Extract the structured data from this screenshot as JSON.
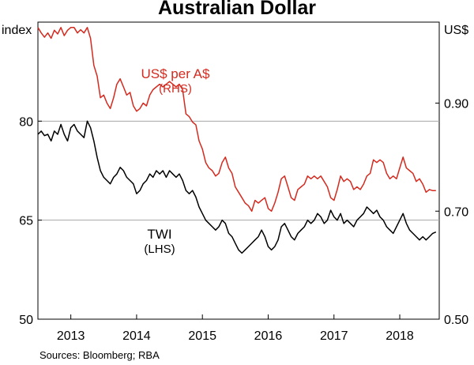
{
  "chart_data": {
    "type": "line",
    "title": "Australian Dollar",
    "source": "Sources: Bloomberg; RBA",
    "left_axis": {
      "unit": "index",
      "ylim": [
        50,
        95
      ],
      "ticks": [
        50,
        65,
        80
      ],
      "tick_labels": [
        "50",
        "65",
        "80"
      ]
    },
    "right_axis": {
      "unit": "US$",
      "ylim": [
        0.5,
        1.05
      ],
      "ticks": [
        0.5,
        0.7,
        0.9
      ],
      "tick_labels": [
        "0.50",
        "0.70",
        "0.90"
      ]
    },
    "x_axis": {
      "xlim": [
        2012.5,
        2018.6
      ],
      "tick_labels": [
        "2013",
        "2014",
        "2015",
        "2016",
        "2017",
        "2018"
      ],
      "label_positions": [
        2013,
        2014,
        2015,
        2016,
        2017,
        2018
      ]
    },
    "grid": "horizontal",
    "series": [
      {
        "name": "US$ per A$",
        "axis_note": "(RHS)",
        "axis": "right",
        "color": "#d42a1f",
        "points": [
          [
            2012.5,
            1.04
          ],
          [
            2012.55,
            1.03
          ],
          [
            2012.6,
            1.022
          ],
          [
            2012.65,
            1.03
          ],
          [
            2012.7,
            1.02
          ],
          [
            2012.75,
            1.035
          ],
          [
            2012.8,
            1.028
          ],
          [
            2012.85,
            1.04
          ],
          [
            2012.9,
            1.025
          ],
          [
            2012.95,
            1.035
          ],
          [
            2013.0,
            1.04
          ],
          [
            2013.05,
            1.04
          ],
          [
            2013.1,
            1.03
          ],
          [
            2013.15,
            1.036
          ],
          [
            2013.2,
            1.03
          ],
          [
            2013.25,
            1.04
          ],
          [
            2013.3,
            1.02
          ],
          [
            2013.35,
            0.97
          ],
          [
            2013.4,
            0.95
          ],
          [
            2013.45,
            0.91
          ],
          [
            2013.5,
            0.915
          ],
          [
            2013.55,
            0.9
          ],
          [
            2013.6,
            0.89
          ],
          [
            2013.65,
            0.91
          ],
          [
            2013.7,
            0.935
          ],
          [
            2013.75,
            0.945
          ],
          [
            2013.8,
            0.93
          ],
          [
            2013.85,
            0.915
          ],
          [
            2013.9,
            0.92
          ],
          [
            2013.95,
            0.895
          ],
          [
            2014.0,
            0.885
          ],
          [
            2014.05,
            0.89
          ],
          [
            2014.1,
            0.9
          ],
          [
            2014.15,
            0.895
          ],
          [
            2014.2,
            0.915
          ],
          [
            2014.25,
            0.925
          ],
          [
            2014.3,
            0.93
          ],
          [
            2014.35,
            0.935
          ],
          [
            2014.4,
            0.93
          ],
          [
            2014.45,
            0.935
          ],
          [
            2014.5,
            0.94
          ],
          [
            2014.55,
            0.935
          ],
          [
            2014.6,
            0.93
          ],
          [
            2014.65,
            0.935
          ],
          [
            2014.7,
            0.925
          ],
          [
            2014.75,
            0.88
          ],
          [
            2014.8,
            0.875
          ],
          [
            2014.85,
            0.865
          ],
          [
            2014.9,
            0.86
          ],
          [
            2014.95,
            0.83
          ],
          [
            2015.0,
            0.815
          ],
          [
            2015.05,
            0.79
          ],
          [
            2015.1,
            0.78
          ],
          [
            2015.15,
            0.775
          ],
          [
            2015.2,
            0.765
          ],
          [
            2015.25,
            0.77
          ],
          [
            2015.3,
            0.79
          ],
          [
            2015.35,
            0.8
          ],
          [
            2015.4,
            0.78
          ],
          [
            2015.45,
            0.77
          ],
          [
            2015.5,
            0.745
          ],
          [
            2015.55,
            0.735
          ],
          [
            2015.6,
            0.725
          ],
          [
            2015.65,
            0.715
          ],
          [
            2015.7,
            0.71
          ],
          [
            2015.75,
            0.7
          ],
          [
            2015.8,
            0.72
          ],
          [
            2015.85,
            0.715
          ],
          [
            2015.9,
            0.72
          ],
          [
            2015.95,
            0.725
          ],
          [
            2016.0,
            0.705
          ],
          [
            2016.05,
            0.7
          ],
          [
            2016.1,
            0.715
          ],
          [
            2016.15,
            0.735
          ],
          [
            2016.2,
            0.76
          ],
          [
            2016.25,
            0.765
          ],
          [
            2016.3,
            0.745
          ],
          [
            2016.35,
            0.725
          ],
          [
            2016.4,
            0.72
          ],
          [
            2016.45,
            0.74
          ],
          [
            2016.5,
            0.745
          ],
          [
            2016.55,
            0.75
          ],
          [
            2016.6,
            0.765
          ],
          [
            2016.65,
            0.76
          ],
          [
            2016.7,
            0.765
          ],
          [
            2016.75,
            0.76
          ],
          [
            2016.8,
            0.765
          ],
          [
            2016.85,
            0.755
          ],
          [
            2016.9,
            0.745
          ],
          [
            2016.95,
            0.725
          ],
          [
            2017.0,
            0.72
          ],
          [
            2017.05,
            0.74
          ],
          [
            2017.1,
            0.765
          ],
          [
            2017.15,
            0.755
          ],
          [
            2017.2,
            0.76
          ],
          [
            2017.25,
            0.755
          ],
          [
            2017.3,
            0.74
          ],
          [
            2017.35,
            0.745
          ],
          [
            2017.4,
            0.74
          ],
          [
            2017.45,
            0.75
          ],
          [
            2017.5,
            0.765
          ],
          [
            2017.55,
            0.77
          ],
          [
            2017.6,
            0.795
          ],
          [
            2017.65,
            0.79
          ],
          [
            2017.7,
            0.795
          ],
          [
            2017.75,
            0.79
          ],
          [
            2017.8,
            0.77
          ],
          [
            2017.85,
            0.76
          ],
          [
            2017.9,
            0.765
          ],
          [
            2017.95,
            0.76
          ],
          [
            2018.0,
            0.78
          ],
          [
            2018.05,
            0.8
          ],
          [
            2018.1,
            0.78
          ],
          [
            2018.15,
            0.775
          ],
          [
            2018.2,
            0.77
          ],
          [
            2018.25,
            0.755
          ],
          [
            2018.3,
            0.76
          ],
          [
            2018.35,
            0.75
          ],
          [
            2018.4,
            0.735
          ],
          [
            2018.45,
            0.74
          ],
          [
            2018.5,
            0.738
          ],
          [
            2018.55,
            0.738
          ]
        ]
      },
      {
        "name": "TWI",
        "axis_note": "(LHS)",
        "axis": "left",
        "color": "#000000",
        "points": [
          [
            2012.5,
            78.0
          ],
          [
            2012.55,
            78.5
          ],
          [
            2012.6,
            77.8
          ],
          [
            2012.65,
            78.0
          ],
          [
            2012.7,
            77.0
          ],
          [
            2012.75,
            78.5
          ],
          [
            2012.8,
            78.0
          ],
          [
            2012.85,
            79.5
          ],
          [
            2012.9,
            78.0
          ],
          [
            2012.95,
            77.0
          ],
          [
            2013.0,
            79.0
          ],
          [
            2013.05,
            79.5
          ],
          [
            2013.1,
            78.5
          ],
          [
            2013.15,
            78.0
          ],
          [
            2013.2,
            77.5
          ],
          [
            2013.25,
            80.0
          ],
          [
            2013.3,
            79.0
          ],
          [
            2013.35,
            77.0
          ],
          [
            2013.4,
            74.5
          ],
          [
            2013.45,
            72.5
          ],
          [
            2013.5,
            71.5
          ],
          [
            2013.55,
            71.0
          ],
          [
            2013.6,
            70.5
          ],
          [
            2013.65,
            71.5
          ],
          [
            2013.7,
            72.0
          ],
          [
            2013.75,
            73.0
          ],
          [
            2013.8,
            72.5
          ],
          [
            2013.85,
            71.5
          ],
          [
            2013.9,
            71.0
          ],
          [
            2013.95,
            70.5
          ],
          [
            2014.0,
            69.0
          ],
          [
            2014.05,
            69.5
          ],
          [
            2014.1,
            70.5
          ],
          [
            2014.15,
            71.0
          ],
          [
            2014.2,
            72.0
          ],
          [
            2014.25,
            71.5
          ],
          [
            2014.3,
            72.5
          ],
          [
            2014.35,
            72.0
          ],
          [
            2014.4,
            72.5
          ],
          [
            2014.45,
            71.5
          ],
          [
            2014.5,
            72.5
          ],
          [
            2014.55,
            72.0
          ],
          [
            2014.6,
            71.5
          ],
          [
            2014.65,
            72.0
          ],
          [
            2014.7,
            71.0
          ],
          [
            2014.75,
            69.5
          ],
          [
            2014.8,
            69.0
          ],
          [
            2014.85,
            69.5
          ],
          [
            2014.9,
            68.5
          ],
          [
            2014.95,
            67.0
          ],
          [
            2015.0,
            66.0
          ],
          [
            2015.05,
            65.0
          ],
          [
            2015.1,
            64.5
          ],
          [
            2015.15,
            64.0
          ],
          [
            2015.2,
            63.5
          ],
          [
            2015.25,
            64.0
          ],
          [
            2015.3,
            65.0
          ],
          [
            2015.35,
            64.5
          ],
          [
            2015.4,
            63.0
          ],
          [
            2015.45,
            62.5
          ],
          [
            2015.5,
            61.5
          ],
          [
            2015.55,
            60.5
          ],
          [
            2015.6,
            60.0
          ],
          [
            2015.65,
            60.5
          ],
          [
            2015.7,
            61.0
          ],
          [
            2015.75,
            61.5
          ],
          [
            2015.8,
            62.0
          ],
          [
            2015.85,
            62.5
          ],
          [
            2015.9,
            63.5
          ],
          [
            2015.95,
            62.5
          ],
          [
            2016.0,
            61.0
          ],
          [
            2016.05,
            60.5
          ],
          [
            2016.1,
            61.0
          ],
          [
            2016.15,
            62.0
          ],
          [
            2016.2,
            64.0
          ],
          [
            2016.25,
            64.5
          ],
          [
            2016.3,
            63.5
          ],
          [
            2016.35,
            62.5
          ],
          [
            2016.4,
            62.0
          ],
          [
            2016.45,
            63.0
          ],
          [
            2016.5,
            63.5
          ],
          [
            2016.55,
            64.0
          ],
          [
            2016.6,
            65.0
          ],
          [
            2016.65,
            64.5
          ],
          [
            2016.7,
            65.0
          ],
          [
            2016.75,
            66.0
          ],
          [
            2016.8,
            65.5
          ],
          [
            2016.85,
            64.5
          ],
          [
            2016.9,
            65.0
          ],
          [
            2016.95,
            66.5
          ],
          [
            2017.0,
            65.5
          ],
          [
            2017.05,
            65.0
          ],
          [
            2017.1,
            66.0
          ],
          [
            2017.15,
            64.5
          ],
          [
            2017.2,
            65.0
          ],
          [
            2017.25,
            64.5
          ],
          [
            2017.3,
            64.0
          ],
          [
            2017.35,
            65.0
          ],
          [
            2017.4,
            65.5
          ],
          [
            2017.45,
            66.0
          ],
          [
            2017.5,
            67.0
          ],
          [
            2017.55,
            66.5
          ],
          [
            2017.6,
            66.0
          ],
          [
            2017.65,
            66.5
          ],
          [
            2017.7,
            65.5
          ],
          [
            2017.75,
            65.0
          ],
          [
            2017.8,
            64.0
          ],
          [
            2017.85,
            63.5
          ],
          [
            2017.9,
            63.0
          ],
          [
            2017.95,
            64.0
          ],
          [
            2018.0,
            65.0
          ],
          [
            2018.05,
            66.0
          ],
          [
            2018.1,
            64.5
          ],
          [
            2018.15,
            63.5
          ],
          [
            2018.2,
            63.0
          ],
          [
            2018.25,
            62.5
          ],
          [
            2018.3,
            62.0
          ],
          [
            2018.35,
            62.5
          ],
          [
            2018.4,
            62.0
          ],
          [
            2018.45,
            62.5
          ],
          [
            2018.5,
            63.0
          ],
          [
            2018.55,
            63.2
          ]
        ]
      }
    ]
  }
}
